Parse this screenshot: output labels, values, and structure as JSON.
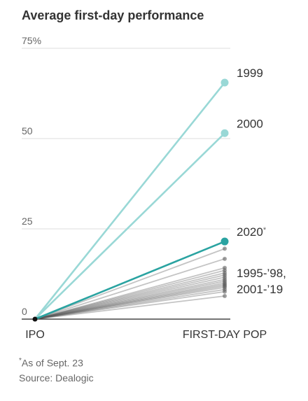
{
  "chart_data": {
    "type": "line",
    "title": "Average first-day performance",
    "categories": [
      "IPO",
      "FIRST-DAY POP"
    ],
    "y_ticks": [
      "0",
      "25",
      "50",
      "75%"
    ],
    "ylim": [
      0,
      75
    ],
    "grid": true,
    "series": [
      {
        "name": "1999",
        "values": [
          0,
          65.5
        ],
        "color": "#99d8d6",
        "highlight": true
      },
      {
        "name": "2000",
        "values": [
          0,
          51.5
        ],
        "color": "#99d8d6",
        "highlight": true
      },
      {
        "name": "2020",
        "note_marker": "*",
        "values": [
          0,
          21.5
        ],
        "color": "#2aa3a1",
        "highlight": true
      },
      {
        "values": [
          0,
          19.5
        ],
        "color": "#555555"
      },
      {
        "values": [
          0,
          16.7
        ],
        "color": "#555555"
      },
      {
        "values": [
          0,
          14.2
        ],
        "color": "#555555"
      },
      {
        "values": [
          0,
          13.5
        ],
        "color": "#555555"
      },
      {
        "values": [
          0,
          12.8
        ],
        "color": "#555555"
      },
      {
        "values": [
          0,
          12.2
        ],
        "color": "#555555"
      },
      {
        "values": [
          0,
          11.6
        ],
        "color": "#555555"
      },
      {
        "values": [
          0,
          11.0
        ],
        "color": "#555555"
      },
      {
        "values": [
          0,
          10.5
        ],
        "color": "#555555"
      },
      {
        "values": [
          0,
          10.0
        ],
        "color": "#555555"
      },
      {
        "values": [
          0,
          9.6
        ],
        "color": "#555555"
      },
      {
        "values": [
          0,
          9.2
        ],
        "color": "#555555"
      },
      {
        "values": [
          0,
          8.8
        ],
        "color": "#555555"
      },
      {
        "values": [
          0,
          8.2
        ],
        "color": "#555555"
      },
      {
        "values": [
          0,
          7.6
        ],
        "color": "#555555"
      },
      {
        "values": [
          0,
          6.4
        ],
        "color": "#555555"
      }
    ],
    "group_label": [
      "1995-’98,",
      "2001-’19"
    ],
    "group_color": "#555555"
  },
  "footnote": {
    "marker": "*",
    "note": "As of Sept. 23",
    "source": "Source: Dealogic"
  }
}
